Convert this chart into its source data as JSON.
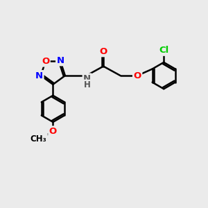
{
  "bg_color": "#ebebeb",
  "bond_color": "#000000",
  "bond_width": 1.8,
  "atom_colors": {
    "O": "#ff0000",
    "N": "#0000ff",
    "Cl": "#00cc00",
    "C": "#000000",
    "H": "#555555"
  },
  "font_size": 9.5,
  "small_font": 8.5
}
